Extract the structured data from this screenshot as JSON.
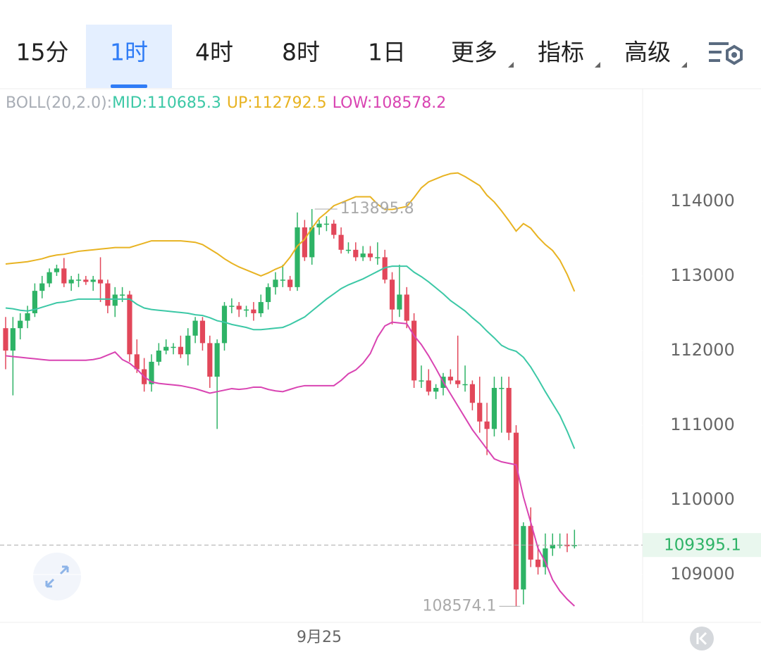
{
  "tabs": [
    "15分",
    "1时",
    "4时",
    "8时",
    "1日",
    "更多",
    "指标",
    "高级"
  ],
  "active_tab": 1,
  "chart_data": {
    "type": "candlestick",
    "indicator": {
      "label": "BOLL(20,2.0):",
      "mid": "MID:110685.3",
      "up": "UP:112792.5",
      "low": "LOW:108578.2"
    },
    "x_label": "9月25",
    "ylim": [
      108360,
      115470
    ],
    "yticks": [
      109000,
      110000,
      111000,
      112000,
      113000,
      114000
    ],
    "grid": true,
    "up_color": "#2eb366",
    "down_color": "#e2475a",
    "open": [
      112300,
      112000,
      112300,
      112400,
      112500,
      112800,
      112900,
      113050,
      113100,
      112900,
      112950,
      112950,
      112920,
      112950,
      112900,
      112600,
      112750,
      112750,
      111950,
      111750,
      111550,
      111850,
      112000,
      112050,
      112050,
      111950,
      112200,
      112400,
      112100,
      111650,
      112100,
      112600,
      112600,
      112550,
      112550,
      112500,
      112650,
      112850,
      112950,
      112950,
      112850,
      113650,
      113250,
      113650,
      113700,
      113700,
      113550,
      113350,
      113350,
      113250,
      113300,
      113250,
      113250,
      112950,
      112550,
      112750,
      112400,
      111600,
      111600,
      111450,
      111500,
      111650,
      111600,
      111550,
      111550,
      111300,
      111050,
      110950,
      111500,
      111500,
      110900,
      108800,
      109650,
      109200,
      109100,
      109350,
      109400,
      109400,
      109380
    ],
    "high": [
      112450,
      112450,
      112500,
      112600,
      112900,
      113000,
      113100,
      113150,
      113240,
      113000,
      113030,
      113000,
      113000,
      113250,
      112950,
      112850,
      112850,
      112800,
      112150,
      111900,
      111950,
      112100,
      112150,
      112100,
      112200,
      112300,
      112450,
      112450,
      112200,
      112150,
      112650,
      112700,
      112650,
      112600,
      112650,
      112750,
      112900,
      113050,
      113150,
      113000,
      113850,
      113750,
      113895.8,
      113750,
      113800,
      113750,
      113650,
      113450,
      113450,
      113400,
      113400,
      113450,
      113350,
      113050,
      113150,
      112850,
      112500,
      111800,
      111750,
      111550,
      111700,
      111750,
      112200,
      111800,
      111600,
      111650,
      111300,
      111650,
      111650,
      111650,
      111000,
      109700,
      109900,
      109400,
      109550,
      109550,
      109550,
      109550,
      109600
    ],
    "low": [
      111750,
      111400,
      112150,
      112300,
      112450,
      112700,
      112850,
      113000,
      112850,
      112800,
      112850,
      112880,
      112800,
      112650,
      112500,
      112450,
      112650,
      111850,
      111700,
      111450,
      111450,
      111800,
      111950,
      111950,
      111900,
      111800,
      112100,
      112000,
      111500,
      110950,
      112000,
      112500,
      112450,
      112450,
      112400,
      112450,
      112550,
      112750,
      112850,
      112800,
      112800,
      113200,
      113150,
      113550,
      113600,
      113500,
      113300,
      113300,
      113200,
      113200,
      113200,
      113150,
      112900,
      112350,
      112450,
      112300,
      111500,
      111500,
      111400,
      111350,
      111400,
      111550,
      111500,
      111450,
      111200,
      110900,
      110600,
      110850,
      110900,
      110800,
      108574.1,
      108600,
      109100,
      109000,
      109000,
      109250,
      109350,
      109300,
      109350
    ],
    "close": [
      112000,
      112300,
      112400,
      112500,
      112800,
      112900,
      113050,
      113100,
      112900,
      112950,
      112950,
      112920,
      112950,
      112900,
      112600,
      112750,
      112750,
      111950,
      111750,
      111550,
      111850,
      112000,
      112050,
      112050,
      111950,
      112200,
      112400,
      112100,
      111650,
      112100,
      112600,
      112600,
      112550,
      112550,
      112500,
      112650,
      112850,
      112950,
      112950,
      112850,
      113650,
      113250,
      113650,
      113700,
      113700,
      113550,
      113350,
      113350,
      113250,
      113300,
      113250,
      113250,
      112950,
      112550,
      112750,
      112400,
      111600,
      111600,
      111450,
      111500,
      111650,
      111600,
      111550,
      111550,
      111300,
      111050,
      110950,
      111500,
      111500,
      110900,
      108800,
      109650,
      109200,
      109100,
      109350,
      109400,
      109400,
      109380,
      109395.1
    ],
    "series": [
      {
        "name": "UP",
        "color": "#e8b322",
        "values": [
          113160,
          113170,
          113180,
          113190,
          113210,
          113230,
          113260,
          113280,
          113290,
          113310,
          113330,
          113340,
          113350,
          113360,
          113370,
          113380,
          113380,
          113380,
          113410,
          113440,
          113470,
          113470,
          113470,
          113470,
          113470,
          113460,
          113450,
          113420,
          113360,
          113300,
          113230,
          113170,
          113120,
          113080,
          113040,
          113000,
          113040,
          113090,
          113130,
          113250,
          113400,
          113490,
          113640,
          113770,
          113850,
          113940,
          113980,
          114020,
          114060,
          114060,
          114060,
          113960,
          113890,
          113890,
          113910,
          113930,
          114050,
          114180,
          114260,
          114300,
          114340,
          114370,
          114380,
          114330,
          114270,
          114210,
          114080,
          113990,
          113870,
          113740,
          113600,
          113700,
          113640,
          113520,
          113420,
          113340,
          113210,
          113020,
          112792.5
        ]
      },
      {
        "name": "MID",
        "color": "#3cc8a6",
        "values": [
          112570,
          112560,
          112540,
          112530,
          112550,
          112580,
          112610,
          112640,
          112650,
          112670,
          112690,
          112690,
          112690,
          112690,
          112690,
          112690,
          112690,
          112690,
          112620,
          112570,
          112550,
          112540,
          112530,
          112520,
          112510,
          112500,
          112480,
          112470,
          112440,
          112400,
          112380,
          112350,
          112330,
          112310,
          112280,
          112280,
          112290,
          112300,
          112310,
          112350,
          112400,
          112450,
          112530,
          112610,
          112690,
          112760,
          112830,
          112880,
          112920,
          112960,
          113010,
          113060,
          113110,
          113130,
          113130,
          113130,
          113050,
          112990,
          112920,
          112840,
          112760,
          112670,
          112600,
          112530,
          112440,
          112360,
          112260,
          112170,
          112070,
          112020,
          111990,
          111910,
          111780,
          111620,
          111450,
          111290,
          111130,
          110920,
          110685.3
        ]
      },
      {
        "name": "LOW",
        "color": "#d944b2",
        "values": [
          111930,
          111920,
          111910,
          111900,
          111890,
          111880,
          111870,
          111870,
          111870,
          111870,
          111870,
          111870,
          111880,
          111900,
          111940,
          111980,
          111880,
          111830,
          111750,
          111650,
          111580,
          111560,
          111550,
          111540,
          111530,
          111510,
          111490,
          111460,
          111430,
          111450,
          111470,
          111490,
          111480,
          111490,
          111510,
          111510,
          111480,
          111460,
          111450,
          111480,
          111510,
          111530,
          111530,
          111530,
          111530,
          111530,
          111600,
          111690,
          111740,
          111830,
          111960,
          112180,
          112330,
          112380,
          112370,
          112360,
          112200,
          112080,
          111930,
          111760,
          111580,
          111420,
          111260,
          111100,
          110940,
          110810,
          110680,
          110550,
          110510,
          110490,
          110470,
          110040,
          109700,
          109350,
          109170,
          108930,
          108780,
          108670,
          108578.2
        ]
      }
    ]
  }
}
